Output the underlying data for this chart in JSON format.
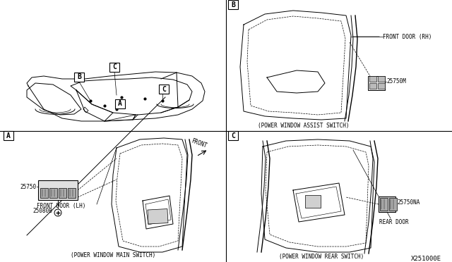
{
  "bg_color": "#ffffff",
  "line_color": "#000000",
  "text_color": "#000000",
  "diagram_code": "X251000E",
  "section_B_label": "B",
  "section_A_label": "A",
  "section_C_label": "C",
  "cap_B": "(POWER WINDOW ASSIST SWITCH)",
  "cap_A": "(POWER WINDOW MAIN SWITCH)",
  "cap_C": "(POWER WINDOW REAR SWITCH)",
  "part_B1": "FRONT DOOR (RH)",
  "part_B2": "25750M",
  "part_A1": "FRONT DOOR (LH)",
  "part_A2": "25750",
  "part_A3": "25080B",
  "front_txt": "FRONT",
  "part_C1": "REAR DOOR",
  "part_C2": "25750NA"
}
